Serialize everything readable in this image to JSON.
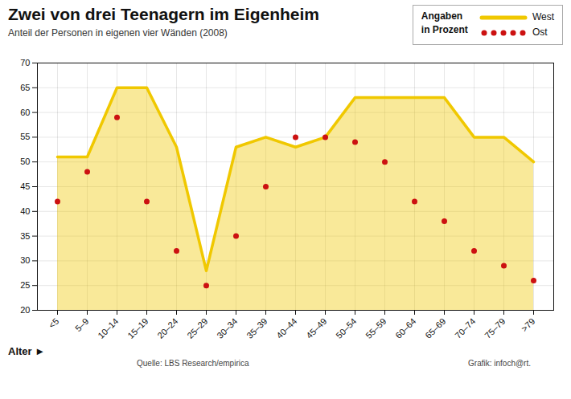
{
  "chart_data": {
    "type": "area",
    "title": "Zwei von drei Teenagern im Eigenheim",
    "subtitle": "Anteil der Personen in eigenen vier Wänden (2008)",
    "x_label": "Alter ►",
    "categories": [
      "<5",
      "5–9",
      "10–14",
      "15–19",
      "20–24",
      "25–29",
      "30–34",
      "35–39",
      "40–44",
      "45–49",
      "50–54",
      "55–59",
      "60–64",
      "65–69",
      "70–74",
      "75–79",
      ">79"
    ],
    "series": [
      {
        "name": "West",
        "type": "area",
        "color": "#f0c800",
        "values": [
          51,
          51,
          65,
          65,
          53,
          28,
          53,
          55,
          53,
          55,
          63,
          63,
          63,
          63,
          55,
          55,
          50
        ]
      },
      {
        "name": "Ost",
        "type": "scatter",
        "marker": "circle",
        "color": "#cc1111",
        "values": [
          42,
          48,
          59,
          42,
          32,
          25,
          35,
          45,
          55,
          55,
          54,
          50,
          42,
          38,
          32,
          29,
          26
        ]
      }
    ],
    "ylim": [
      20,
      70
    ],
    "yticks": [
      20,
      25,
      30,
      35,
      40,
      45,
      50,
      55,
      60,
      65,
      70
    ],
    "grid": true,
    "legend": "top-right",
    "annotations": [
      "Angaben\nin Prozent",
      "Quelle: LBS Research/empirica",
      "Grafik: infoch@rt."
    ]
  }
}
